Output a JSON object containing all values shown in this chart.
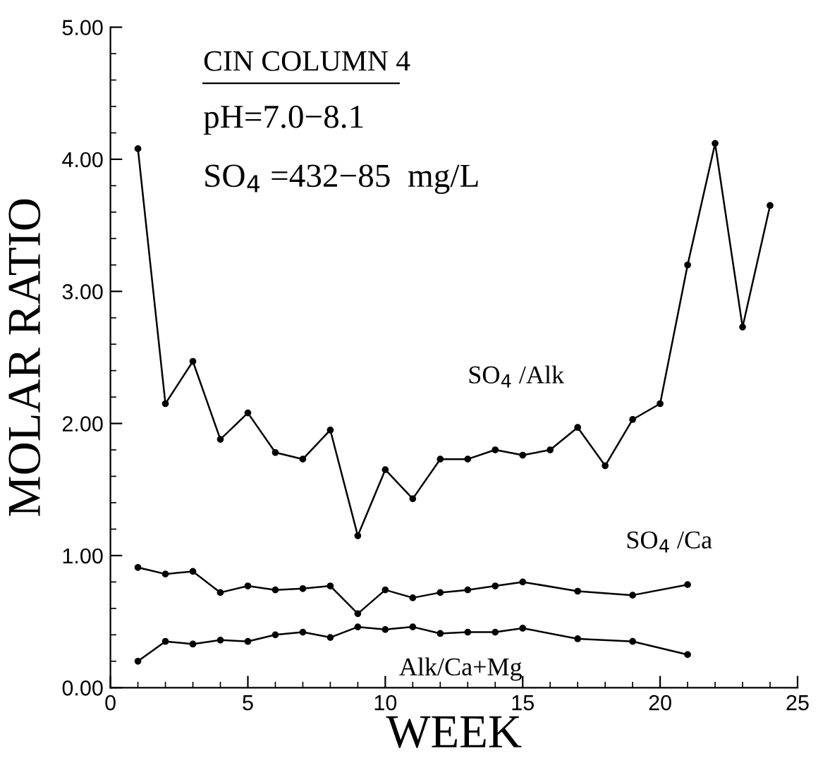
{
  "chart_data": {
    "type": "line",
    "title": "CIN COLUMN 4",
    "xlabel": "WEEK",
    "ylabel": "MOLAR RATIO",
    "annotations": [
      "pH=7.0−8.1",
      "SO$_{4}$ =432−85  mg/L"
    ],
    "xlim": [
      0,
      25
    ],
    "xticks": [
      0,
      5,
      10,
      15,
      20,
      25
    ],
    "ylim": [
      0,
      5
    ],
    "yticks": [
      {
        "value": 0,
        "label": "0.00"
      },
      {
        "value": 1,
        "label": "1.00"
      },
      {
        "value": 2,
        "label": "2.00"
      },
      {
        "value": 3,
        "label": "3.00"
      },
      {
        "value": 4,
        "label": "4.00"
      },
      {
        "value": 5,
        "label": "5.00"
      }
    ],
    "marker": "circle",
    "line_style": "solid",
    "grid": false,
    "legend": false,
    "series": [
      {
        "name": "SO$_{4}$ /Alk",
        "color": "#000000",
        "x": [
          1,
          2,
          3,
          4,
          5,
          6,
          7,
          8,
          9,
          10,
          11,
          12,
          13,
          14,
          15,
          16,
          17,
          18,
          19,
          20,
          21,
          22,
          23,
          24
        ],
        "values": [
          4.08,
          2.15,
          2.47,
          1.88,
          2.08,
          1.78,
          1.73,
          1.95,
          1.15,
          1.65,
          1.43,
          1.73,
          1.73,
          1.8,
          1.76,
          1.8,
          1.97,
          1.68,
          2.03,
          2.15,
          3.2,
          4.12,
          2.73,
          3.65
        ]
      },
      {
        "name": "SO$_{4}$ /Ca",
        "color": "#000000",
        "x": [
          1,
          2,
          3,
          4,
          5,
          6,
          7,
          8,
          9,
          10,
          11,
          12,
          13,
          14,
          15,
          17,
          19,
          21
        ],
        "values": [
          0.91,
          0.86,
          0.88,
          0.72,
          0.77,
          0.74,
          0.75,
          0.77,
          0.56,
          0.74,
          0.68,
          0.72,
          0.74,
          0.77,
          0.8,
          0.73,
          0.7,
          0.78
        ]
      },
      {
        "name": "Alk/Ca+Mg",
        "color": "#000000",
        "x": [
          1,
          2,
          3,
          4,
          5,
          6,
          7,
          8,
          9,
          10,
          11,
          12,
          13,
          14,
          15,
          17,
          19,
          21
        ],
        "values": [
          0.2,
          0.35,
          0.33,
          0.36,
          0.35,
          0.4,
          0.42,
          0.38,
          0.46,
          0.44,
          0.46,
          0.41,
          0.42,
          0.42,
          0.45,
          0.37,
          0.35,
          0.25
        ]
      }
    ]
  }
}
